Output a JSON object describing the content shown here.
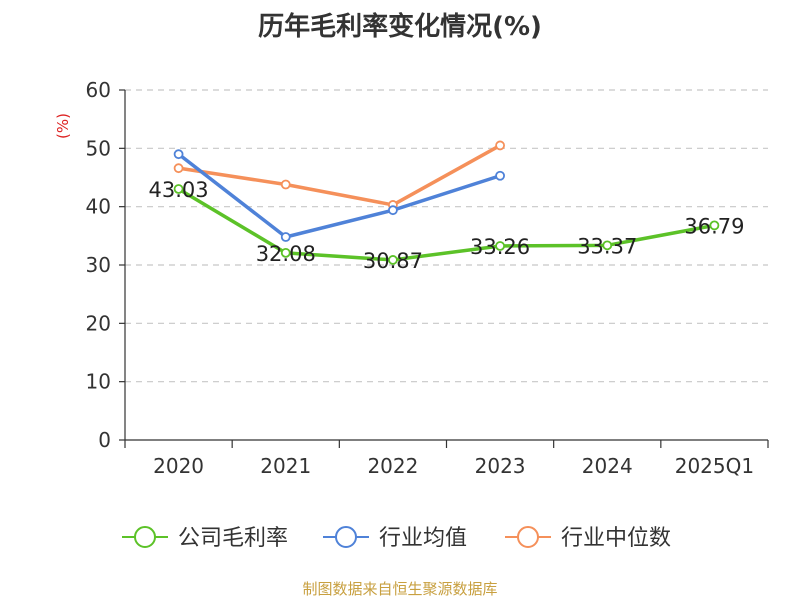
{
  "chart_data": {
    "type": "line",
    "title": "历年毛利率变化情况(%)",
    "ylabel": "(%)",
    "xlabel": "",
    "categories": [
      "2020",
      "2021",
      "2022",
      "2023",
      "2024",
      "2025Q1"
    ],
    "ylim": [
      0,
      60
    ],
    "yticks": [
      0,
      10,
      20,
      30,
      40,
      50,
      60
    ],
    "grid": true,
    "legend_position": "bottom",
    "series": [
      {
        "name": "公司毛利率",
        "color": "#5cc228",
        "values": [
          43.03,
          32.08,
          30.87,
          33.26,
          33.37,
          36.79
        ],
        "labels": [
          "43.03",
          "32.08",
          "30.87",
          "33.26",
          "33.37",
          "36.79"
        ]
      },
      {
        "name": "行业均值",
        "color": "#4f82d8",
        "values": [
          49.0,
          34.8,
          39.4,
          45.3,
          null,
          null
        ]
      },
      {
        "name": "行业中位数",
        "color": "#f5905a",
        "values": [
          46.6,
          43.8,
          40.3,
          50.5,
          null,
          null
        ]
      }
    ]
  },
  "footer": {
    "source": "制图数据来自恒生聚源数据库"
  }
}
